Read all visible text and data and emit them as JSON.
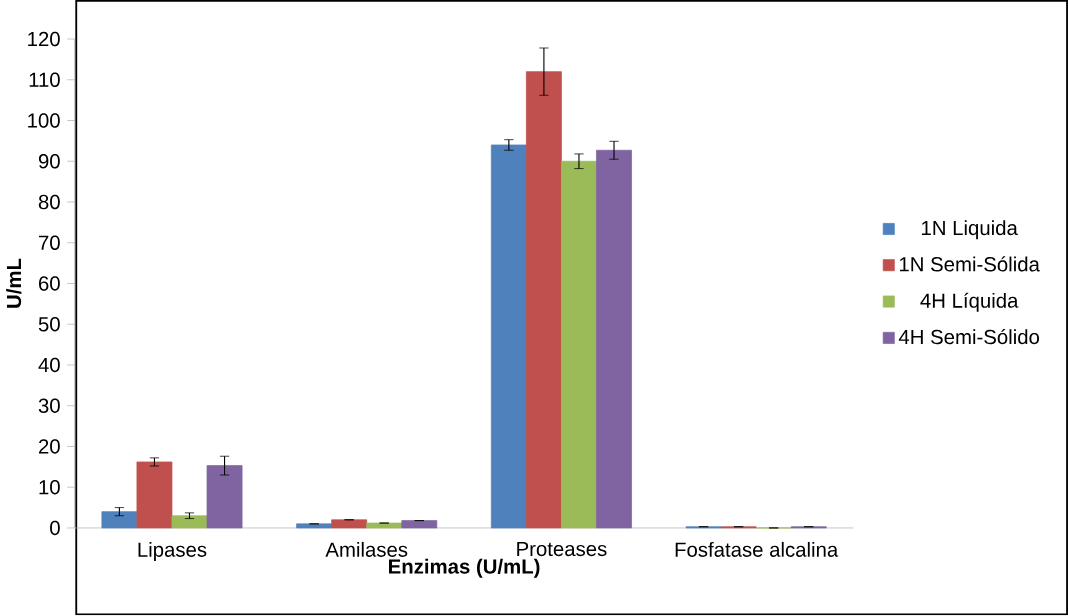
{
  "chart_data": {
    "type": "bar",
    "xlabel": "Enzimas (U/mL)",
    "ylabel": "U/mL",
    "categories": [
      "Lipases",
      "Amilases",
      "Proteases",
      "Fosfatase alcalina"
    ],
    "series": [
      {
        "name": "1N Liquida",
        "color": "#4f81bd",
        "values": [
          4,
          1,
          94,
          0.3
        ],
        "errors": [
          1,
          null,
          1.3,
          null
        ]
      },
      {
        "name": "1N Semi-Sólida",
        "color": "#c0504d",
        "values": [
          16.2,
          2,
          112,
          0.3
        ],
        "errors": [
          1,
          null,
          5.8,
          null
        ]
      },
      {
        "name": "4H Líquida",
        "color": "#9bbb59",
        "values": [
          3,
          1.2,
          90,
          0
        ],
        "errors": [
          0.7,
          null,
          1.8,
          null
        ]
      },
      {
        "name": "4H Semi-Sólido",
        "color": "#8064a2",
        "values": [
          15.3,
          1.8,
          92.7,
          0.3
        ],
        "errors": [
          2.3,
          null,
          2.2,
          null
        ]
      }
    ],
    "ylim": [
      0,
      120
    ],
    "yticks": [
      0,
      10,
      20,
      30,
      40,
      50,
      60,
      70,
      80,
      90,
      100,
      110,
      120
    ],
    "legend": "right"
  }
}
